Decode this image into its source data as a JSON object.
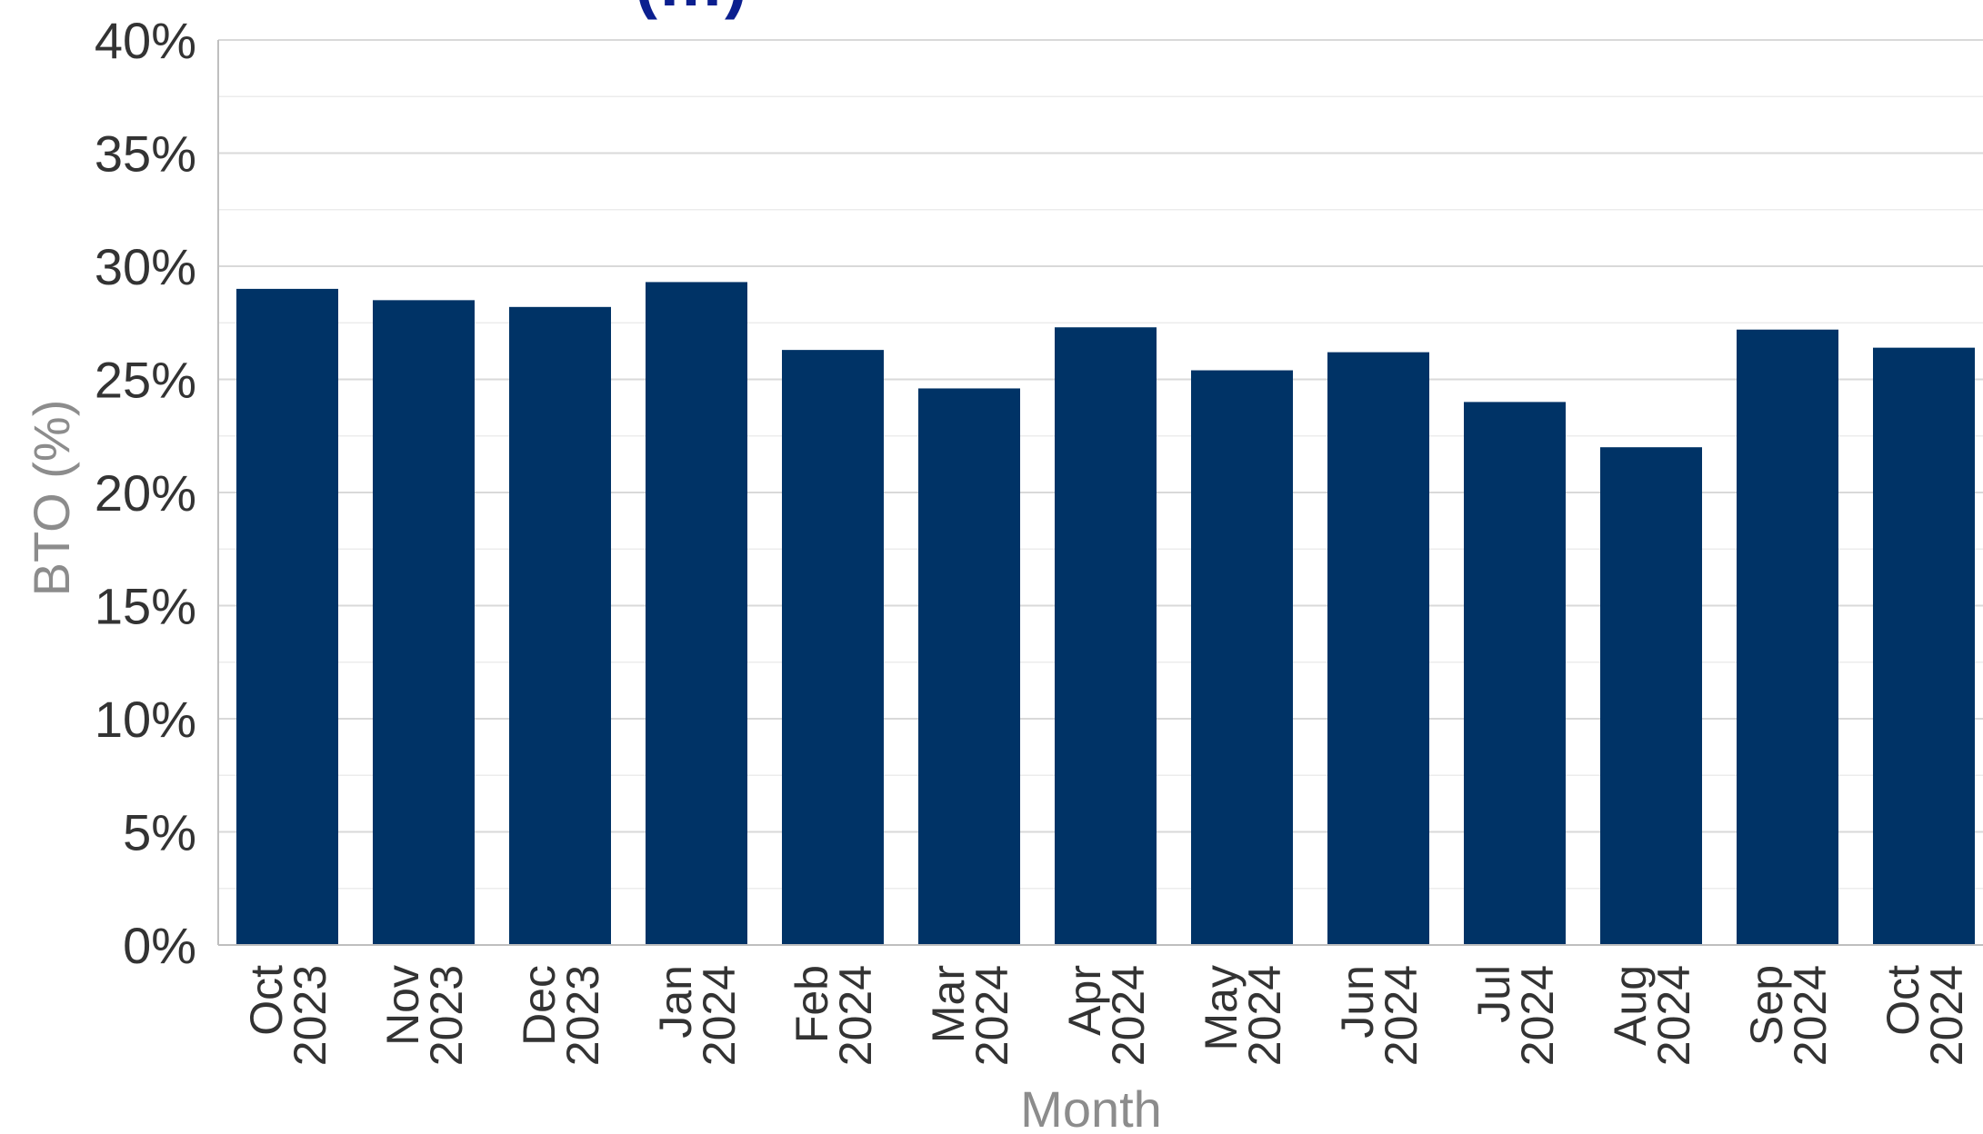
{
  "title_fragment": "(…)",
  "chart_data": {
    "type": "bar",
    "categories": [
      [
        "Oct",
        "2023"
      ],
      [
        "Nov",
        "2023"
      ],
      [
        "Dec",
        "2023"
      ],
      [
        "Jan",
        "2024"
      ],
      [
        "Feb",
        "2024"
      ],
      [
        "Mar",
        "2024"
      ],
      [
        "Apr",
        "2024"
      ],
      [
        "May",
        "2024"
      ],
      [
        "Jun",
        "2024"
      ],
      [
        "Jul",
        "2024"
      ],
      [
        "Aug",
        "2024"
      ],
      [
        "Sep",
        "2024"
      ],
      [
        "Oct",
        "2024"
      ]
    ],
    "values": [
      29.0,
      28.5,
      28.2,
      29.3,
      26.3,
      24.6,
      27.3,
      25.4,
      26.2,
      24.0,
      22.0,
      27.2,
      26.4
    ],
    "xlabel": "Month",
    "ylabel": "BTO (%)",
    "ylim": [
      0,
      40
    ],
    "yticks": [
      0,
      5,
      10,
      15,
      20,
      25,
      30,
      35,
      40
    ],
    "ytick_labels": [
      "0%",
      "5%",
      "10%",
      "15%",
      "20%",
      "25%",
      "30%",
      "35%",
      "40%"
    ],
    "grid": true,
    "bar_color": "#003366"
  }
}
